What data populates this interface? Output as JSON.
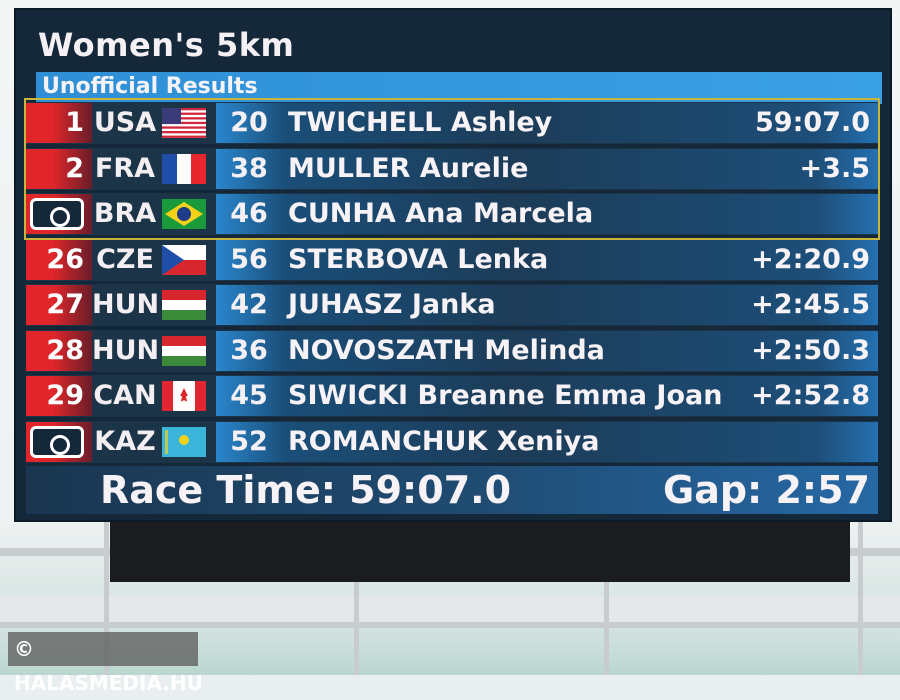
{
  "board": {
    "title": "Women's 5km",
    "subtitle": "Unofficial Results",
    "rows": [
      {
        "rank": "1",
        "photo_finish": false,
        "country": "USA",
        "flag": "usa",
        "bib": "20",
        "name": "TWICHELL Ashley",
        "time": "59:07.0"
      },
      {
        "rank": "2",
        "photo_finish": false,
        "country": "FRA",
        "flag": "fra",
        "bib": "38",
        "name": "MULLER Aurelie",
        "time": "+3.5"
      },
      {
        "rank": "",
        "photo_finish": true,
        "country": "BRA",
        "flag": "bra",
        "bib": "46",
        "name": "CUNHA Ana Marcela",
        "time": ""
      },
      {
        "rank": "26",
        "photo_finish": false,
        "country": "CZE",
        "flag": "cze",
        "bib": "56",
        "name": "STERBOVA Lenka",
        "time": "+2:20.9"
      },
      {
        "rank": "27",
        "photo_finish": false,
        "country": "HUN",
        "flag": "hun",
        "bib": "42",
        "name": "JUHASZ Janka",
        "time": "+2:45.5"
      },
      {
        "rank": "28",
        "photo_finish": false,
        "country": "HUN",
        "flag": "hun",
        "bib": "36",
        "name": "NOVOSZATH Melinda",
        "time": "+2:50.3"
      },
      {
        "rank": "29",
        "photo_finish": false,
        "country": "CAN",
        "flag": "can",
        "bib": "45",
        "name": "SIWICKI Breanne Emma Joan",
        "time": "+2:52.8"
      },
      {
        "rank": "",
        "photo_finish": true,
        "country": "KAZ",
        "flag": "kaz",
        "bib": "52",
        "name": "ROMANCHUK Xeniya",
        "time": ""
      }
    ],
    "race_time": "Race Time: 59:07.0",
    "gap": "Gap: 2:57"
  },
  "watermark": "© HALASMEDIA.HU",
  "colors": {
    "rank_red": "#e0262a",
    "bib_blue": "#2a86cc",
    "highlight": "#c8b43a",
    "board": "#14283a"
  }
}
